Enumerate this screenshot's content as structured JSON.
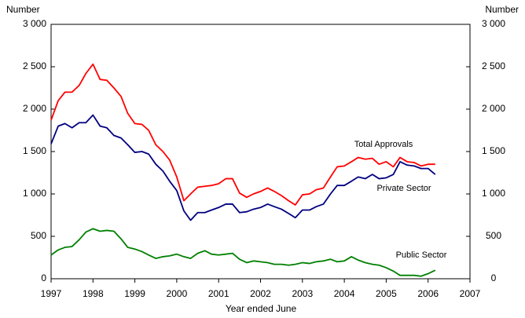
{
  "chart_data": {
    "type": "line",
    "y_label": "Number",
    "y2_label": "Number",
    "x_label": "Year ended June",
    "x": [
      1997,
      1997.17,
      1997.33,
      1997.5,
      1997.67,
      1997.83,
      1998,
      1998.17,
      1998.33,
      1998.5,
      1998.67,
      1998.83,
      1999,
      1999.17,
      1999.33,
      1999.5,
      1999.67,
      1999.83,
      2000,
      2000.17,
      2000.33,
      2000.5,
      2000.67,
      2000.83,
      2001,
      2001.17,
      2001.33,
      2001.5,
      2001.67,
      2001.83,
      2002,
      2002.17,
      2002.33,
      2002.5,
      2002.67,
      2002.83,
      2003,
      2003.17,
      2003.33,
      2003.5,
      2003.67,
      2003.83,
      2004,
      2004.17,
      2004.33,
      2004.5,
      2004.67,
      2004.83,
      2005,
      2005.17,
      2005.33,
      2005.5,
      2005.67,
      2005.83,
      2006,
      2006.17
    ],
    "series": [
      {
        "name": "Total Approvals",
        "color": "#ff0000",
        "values": [
          1870,
          2100,
          2200,
          2200,
          2280,
          2420,
          2530,
          2350,
          2340,
          2250,
          2150,
          1950,
          1830,
          1820,
          1750,
          1580,
          1500,
          1400,
          1200,
          920,
          1000,
          1080,
          1090,
          1100,
          1120,
          1180,
          1180,
          1010,
          960,
          1000,
          1030,
          1070,
          1030,
          980,
          920,
          870,
          990,
          1000,
          1050,
          1070,
          1200,
          1320,
          1330,
          1380,
          1430,
          1410,
          1420,
          1350,
          1380,
          1320,
          1430,
          1380,
          1370,
          1330,
          1350,
          1350
        ]
      },
      {
        "name": "Private Sector",
        "color": "#000080",
        "values": [
          1590,
          1800,
          1830,
          1780,
          1840,
          1840,
          1930,
          1800,
          1780,
          1690,
          1660,
          1580,
          1490,
          1500,
          1470,
          1350,
          1270,
          1150,
          1040,
          800,
          690,
          780,
          780,
          810,
          840,
          880,
          880,
          780,
          790,
          820,
          840,
          880,
          850,
          820,
          770,
          720,
          810,
          810,
          850,
          880,
          1000,
          1100,
          1100,
          1150,
          1200,
          1180,
          1230,
          1180,
          1190,
          1230,
          1380,
          1340,
          1330,
          1300,
          1300,
          1230
        ]
      },
      {
        "name": "Public Sector",
        "color": "#008000",
        "values": [
          280,
          340,
          370,
          380,
          460,
          550,
          590,
          560,
          570,
          560,
          470,
          370,
          350,
          320,
          280,
          240,
          260,
          270,
          290,
          260,
          240,
          300,
          330,
          290,
          280,
          290,
          300,
          230,
          190,
          210,
          200,
          190,
          170,
          170,
          160,
          170,
          190,
          180,
          200,
          210,
          230,
          200,
          210,
          260,
          220,
          190,
          170,
          160,
          130,
          90,
          40,
          40,
          40,
          30,
          60,
          100
        ]
      }
    ],
    "xlim": [
      1997,
      2007
    ],
    "xticks": [
      1997,
      1998,
      1999,
      2000,
      2001,
      2002,
      2003,
      2004,
      2005,
      2006,
      2007
    ],
    "ylim": [
      0,
      3000
    ],
    "yticks": [
      0,
      500,
      {
        "value": 1000,
        "label": "1 000"
      },
      {
        "value": 1500,
        "label": "1 500"
      },
      {
        "value": 2000,
        "label": "2 000"
      },
      {
        "value": 2500,
        "label": "2 500"
      },
      {
        "value": 3000,
        "label": "3 000"
      }
    ],
    "y2lim": [
      0,
      3000
    ],
    "y2ticks": [
      0,
      500,
      {
        "value": 1000,
        "label": "1 000"
      },
      {
        "value": 1500,
        "label": "1 500"
      },
      {
        "value": 2000,
        "label": "2 000"
      },
      {
        "value": 2500,
        "label": "2 500"
      },
      {
        "value": 3000,
        "label": "3 000"
      }
    ],
    "grid": false
  }
}
